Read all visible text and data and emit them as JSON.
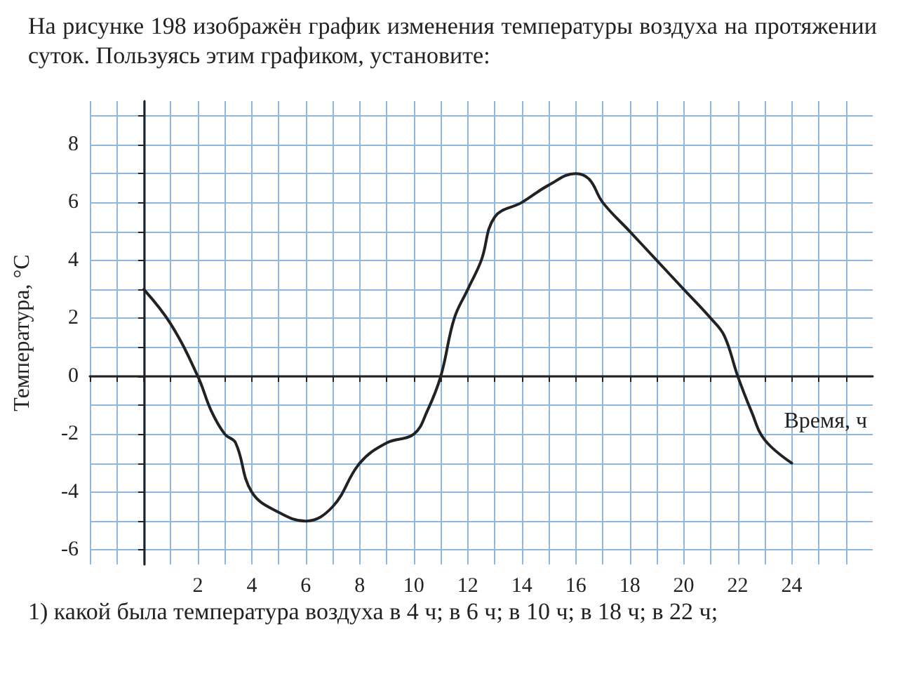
{
  "chart_data": {
    "type": "line",
    "title": "На рисунке 198 изображён график изменения температуры воздуха на протяжении суток. Пользуясь этим графиком, установите:",
    "annotations": [
      "1) какой была температура воздуха в 4 ч; в 6 ч; в 10 ч; в 18 ч; в 22 ч;"
    ],
    "xlabel": "Время, ч",
    "ylabel": "Температура, °C",
    "x": [
      0,
      1,
      2,
      2.5,
      3,
      3.4,
      4,
      5,
      6,
      7,
      8,
      9,
      10,
      10.5,
      11,
      11.5,
      12,
      12.5,
      13,
      14,
      15,
      16,
      16.5,
      17,
      18,
      19,
      20,
      21,
      21.5,
      22,
      22.5,
      23,
      24
    ],
    "series": [
      {
        "color": "#222222",
        "values": [
          3,
          1.8,
          0,
          -1.2,
          -2,
          -2.3,
          -4,
          -4.7,
          -5,
          -4.5,
          -3,
          -2.3,
          -2,
          -1.2,
          0,
          2,
          3,
          4,
          5.5,
          6,
          6.6,
          7,
          6.8,
          6,
          5,
          4,
          3,
          2,
          1.4,
          0,
          -1.2,
          -2.2,
          -3
        ]
      }
    ],
    "xlim": [
      -2,
      27
    ],
    "xticks": [
      {
        "value": -2,
        "label": null
      },
      {
        "value": -1,
        "label": null
      },
      {
        "value": 0,
        "label": null
      },
      {
        "value": 1,
        "label": null
      },
      2,
      {
        "value": 3,
        "label": null
      },
      4,
      {
        "value": 5,
        "label": null
      },
      6,
      {
        "value": 7,
        "label": null
      },
      8,
      {
        "value": 9,
        "label": null
      },
      10,
      {
        "value": 11,
        "label": null
      },
      12,
      {
        "value": 13,
        "label": null
      },
      14,
      {
        "value": 15,
        "label": null
      },
      16,
      {
        "value": 17,
        "label": null
      },
      18,
      {
        "value": 19,
        "label": null
      },
      20,
      {
        "value": 21,
        "label": null
      },
      22,
      {
        "value": 23,
        "label": null
      },
      24,
      {
        "value": 25,
        "label": null
      },
      {
        "value": 26,
        "label": null
      }
    ],
    "ylim": [
      -6.5,
      9.5
    ],
    "yticks": [
      -6,
      {
        "value": -5,
        "label": null
      },
      -4,
      {
        "value": -3,
        "label": null
      },
      -2,
      {
        "value": -1,
        "label": null
      },
      0,
      {
        "value": 1,
        "label": null
      },
      2,
      {
        "value": 3,
        "label": null
      },
      4,
      {
        "value": 5,
        "label": null
      },
      6,
      {
        "value": 7,
        "label": null
      },
      8,
      {
        "value": 9,
        "label": null
      }
    ],
    "grid": true,
    "marker": "none",
    "line_style": "solid"
  }
}
